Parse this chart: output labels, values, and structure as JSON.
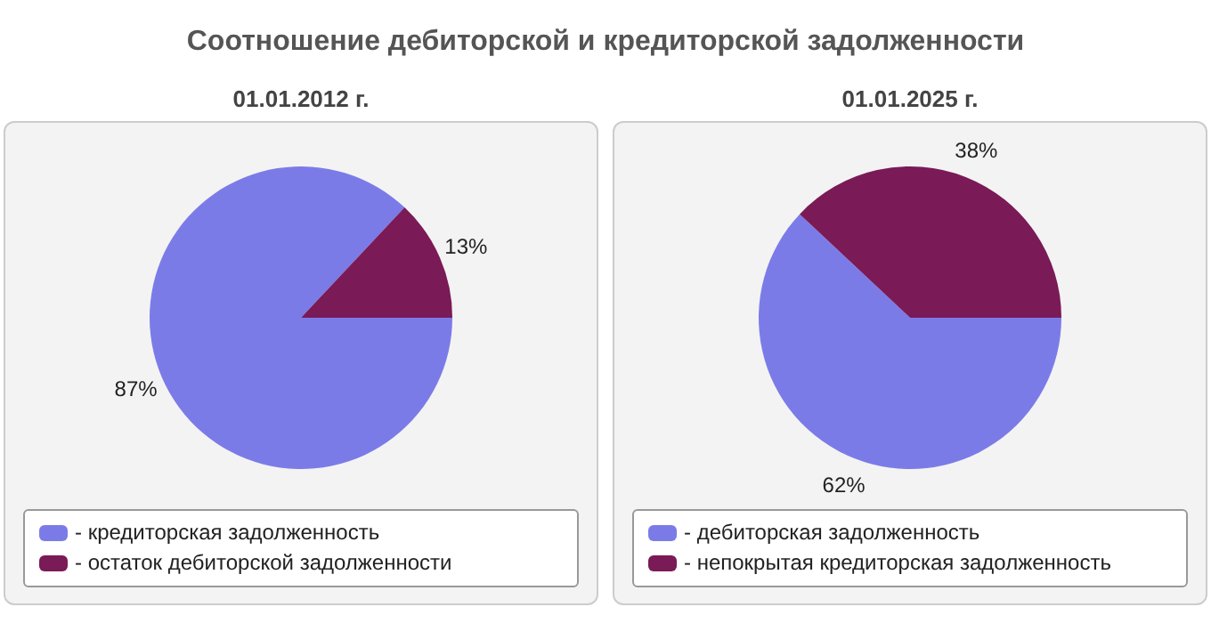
{
  "chart_data": [
    {
      "type": "pie",
      "title": "Соотношение дебиторской и кредиторской задолженности",
      "subtitle": "01.01.2012 г.",
      "categories": [
        "- кредиторская задолженность",
        "- остаток дебиторской задолженности"
      ],
      "values": [
        87,
        13
      ],
      "colors": [
        "#7b7be8",
        "#7a1a57"
      ],
      "value_labels": [
        "87%",
        "13%"
      ],
      "legend": "bottom"
    },
    {
      "type": "pie",
      "subtitle": "01.01.2025 г.",
      "categories": [
        "- дебиторская задолженность",
        "- непокрытая кредиторская задолженность"
      ],
      "values": [
        62,
        38
      ],
      "colors": [
        "#7b7be8",
        "#7a1a57"
      ],
      "value_labels": [
        "62%",
        "38%"
      ],
      "legend": "bottom"
    }
  ]
}
